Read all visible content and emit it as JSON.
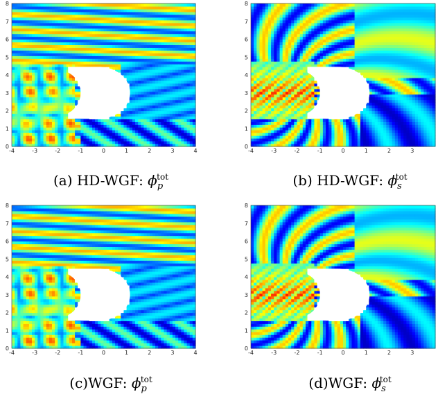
{
  "figure": {
    "panels": [
      {
        "id": "a",
        "caption_prefix": "(a) HD-WGF: ",
        "symbol": "ϕ",
        "sub": "p",
        "sup": "tot",
        "kind": "p"
      },
      {
        "id": "b",
        "caption_prefix": "(b) HD-WGF: ",
        "symbol": "ϕ",
        "sub": "s",
        "sup": "tot",
        "kind": "s"
      },
      {
        "id": "c",
        "caption_prefix": "(c)WGF: ",
        "symbol": "ϕ",
        "sub": "p",
        "sup": "tot",
        "kind": "p"
      },
      {
        "id": "d",
        "caption_prefix": "(d)WGF: ",
        "symbol": "ϕ",
        "sub": "s",
        "sup": "tot",
        "kind": "s"
      }
    ]
  },
  "chart_data": [
    {
      "type": "heatmap",
      "panel": "a",
      "xlim": [
        -4,
        4
      ],
      "ylim": [
        0,
        8
      ],
      "xticks": [
        "-4",
        "-3",
        "-2",
        "-1",
        "0",
        "1",
        "2",
        "3",
        "4"
      ],
      "yticks": [
        "0",
        "1",
        "2",
        "3",
        "4",
        "5",
        "6",
        "7",
        "8"
      ]
    },
    {
      "type": "heatmap",
      "panel": "b",
      "xlim": [
        -4,
        4
      ],
      "ylim": [
        0,
        8
      ],
      "xticks": [
        "-4",
        "-3",
        "-2",
        "-1",
        "0",
        "1",
        "2",
        "3"
      ],
      "yticks": [
        "0",
        "1",
        "2",
        "3",
        "4",
        "5",
        "6",
        "7",
        "8"
      ]
    },
    {
      "type": "heatmap",
      "panel": "c",
      "xlim": [
        -4,
        4
      ],
      "ylim": [
        0,
        8
      ],
      "xticks": [
        "-4",
        "-3",
        "-2",
        "-1",
        "0",
        "1",
        "2",
        "3",
        "4"
      ],
      "yticks": [
        "0",
        "1",
        "2",
        "3",
        "4",
        "5",
        "6",
        "7",
        "8"
      ]
    },
    {
      "type": "heatmap",
      "panel": "d",
      "xlim": [
        -4,
        4
      ],
      "ylim": [
        0,
        8
      ],
      "xticks": [
        "-4",
        "-3",
        "-2",
        "-1",
        "0",
        "1",
        "2",
        "3"
      ],
      "yticks": [
        "0",
        "1",
        "2",
        "3",
        "4",
        "5",
        "6",
        "7",
        "8"
      ]
    }
  ]
}
